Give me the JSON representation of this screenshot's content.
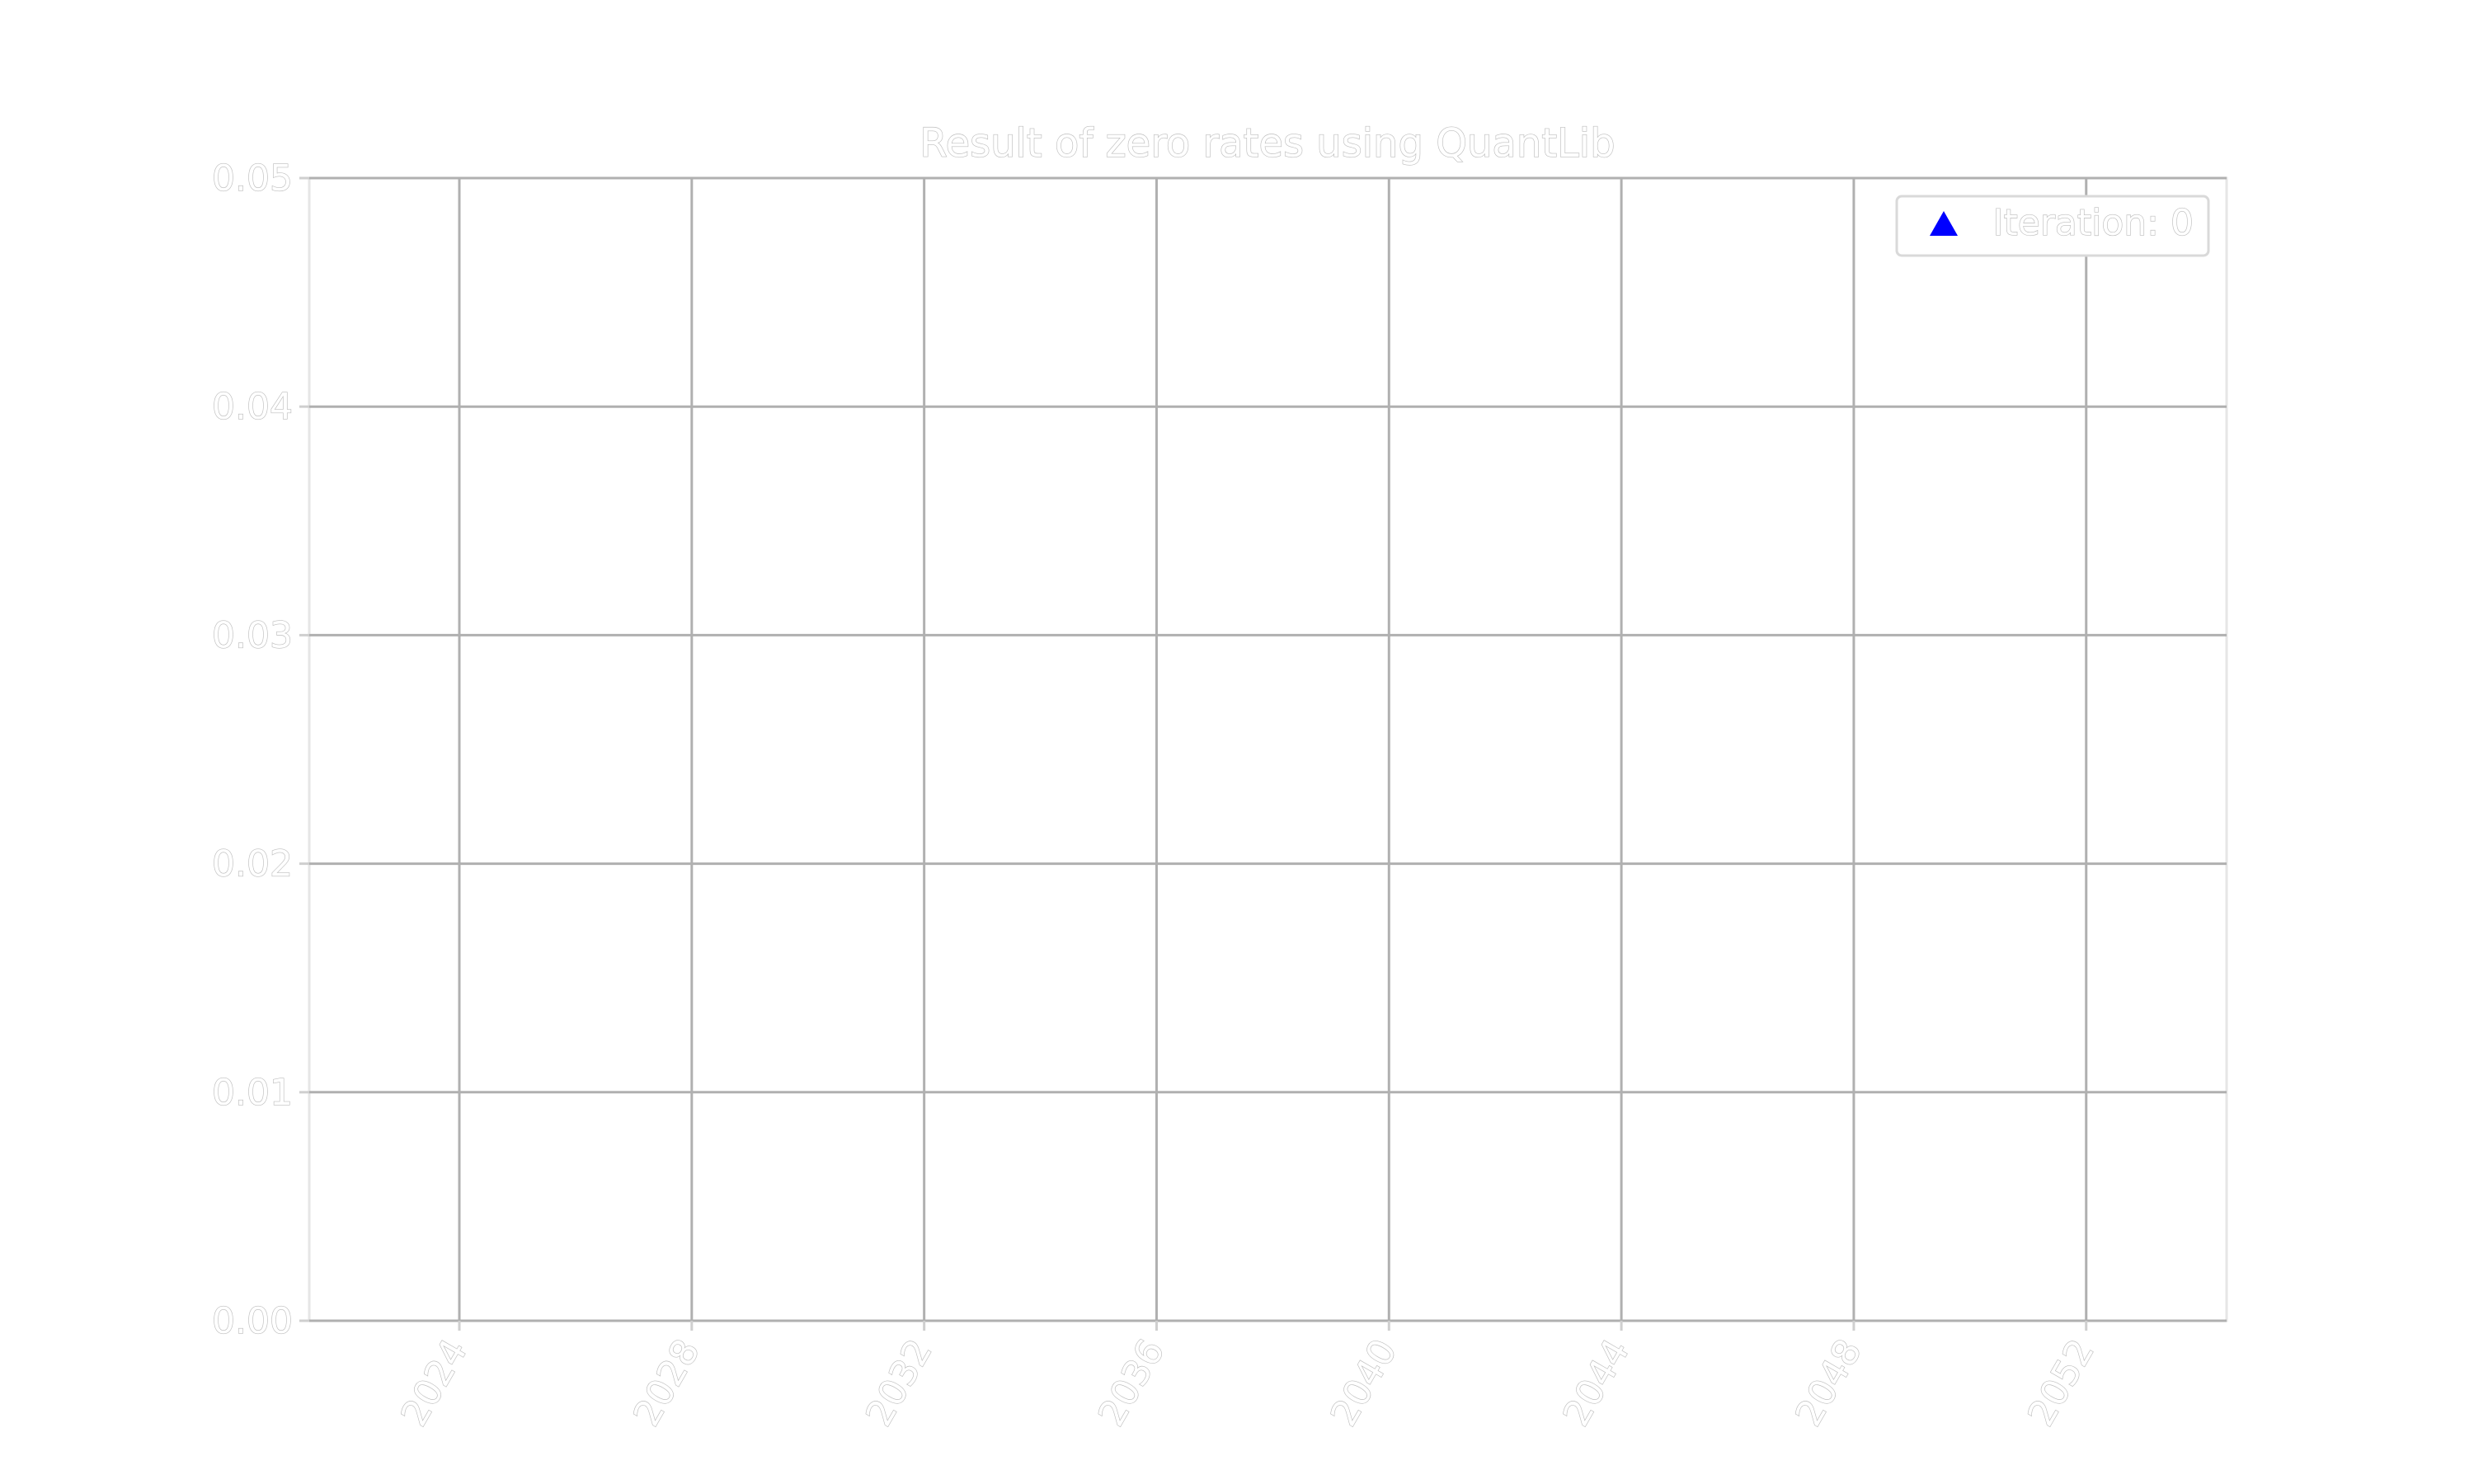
{
  "chart_data": {
    "type": "scatter",
    "title": "Result of zero rates using QuantLib",
    "xlabel": "",
    "ylabel": "",
    "x_ticks": [
      "2024",
      "2028",
      "2032",
      "2036",
      "2040",
      "2044",
      "2048",
      "2052"
    ],
    "y_ticks": [
      "0.00",
      "0.01",
      "0.02",
      "0.03",
      "0.04",
      "0.05"
    ],
    "xlim": [
      "2021-06",
      "2054-06"
    ],
    "ylim": [
      0.0,
      0.05
    ],
    "grid": true,
    "legend_position": "top-right",
    "series": [
      {
        "name": "Iteration: 0",
        "marker": "triangle",
        "color": "#0000ff",
        "points": []
      }
    ]
  }
}
